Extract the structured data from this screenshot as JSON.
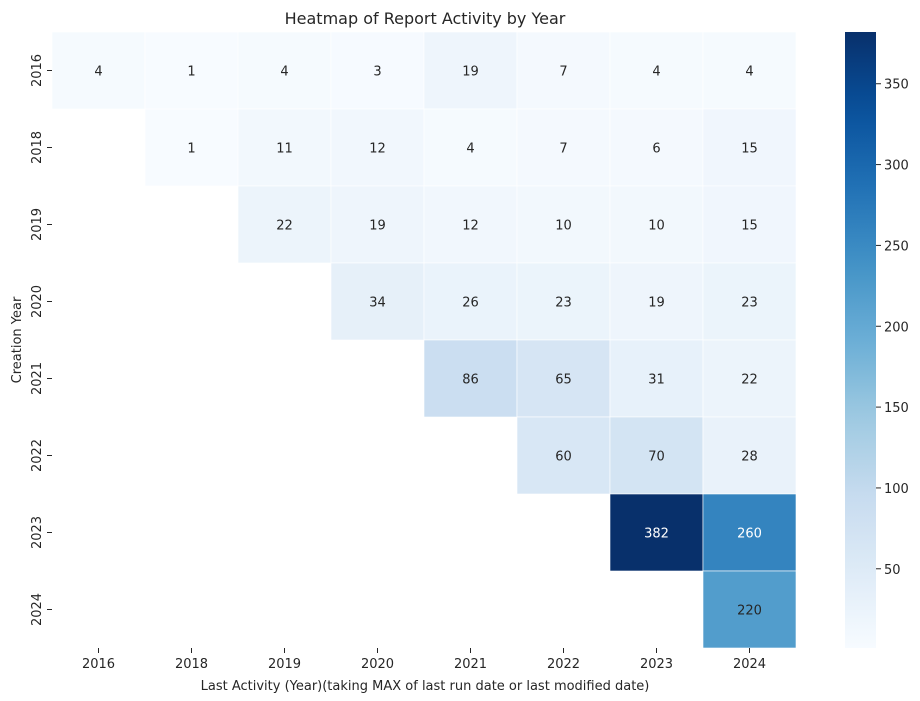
{
  "chart_data": {
    "type": "heatmap",
    "title": "Heatmap of Report Activity by Year",
    "xlabel": "Last Activity (Year)(taking MAX of last run date or last modified date)",
    "ylabel": "Creation Year",
    "x_categories": [
      "2016",
      "2018",
      "2019",
      "2020",
      "2021",
      "2022",
      "2023",
      "2024"
    ],
    "y_categories": [
      "2016",
      "2018",
      "2019",
      "2020",
      "2021",
      "2022",
      "2023",
      "2024"
    ],
    "values": [
      [
        4,
        1,
        4,
        3,
        19,
        7,
        4,
        4
      ],
      [
        null,
        1,
        11,
        12,
        4,
        7,
        6,
        15
      ],
      [
        null,
        null,
        22,
        19,
        12,
        10,
        10,
        15
      ],
      [
        null,
        null,
        null,
        34,
        26,
        23,
        19,
        23
      ],
      [
        null,
        null,
        null,
        null,
        86,
        65,
        31,
        22
      ],
      [
        null,
        null,
        null,
        null,
        null,
        60,
        70,
        28
      ],
      [
        null,
        null,
        null,
        null,
        null,
        null,
        382,
        260
      ],
      [
        null,
        null,
        null,
        null,
        null,
        null,
        null,
        220
      ]
    ],
    "colormap": "Blues",
    "vmin": 1,
    "vmax": 382,
    "colorbar_ticks": [
      50,
      100,
      150,
      200,
      250,
      300,
      350
    ],
    "annotated": true,
    "grid": false
  }
}
